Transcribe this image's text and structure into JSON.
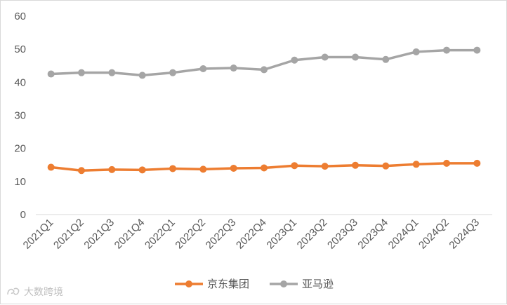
{
  "chart_data": {
    "type": "line",
    "categories": [
      "2021Q1",
      "2021Q2",
      "2021Q3",
      "2021Q4",
      "2022Q1",
      "2022Q2",
      "2022Q3",
      "2022Q4",
      "2023Q1",
      "2023Q2",
      "2023Q3",
      "2023Q4",
      "2024Q1",
      "2024Q2",
      "2024Q3"
    ],
    "series": [
      {
        "name": "京东集团",
        "color": "#ED7D31",
        "values": [
          14.3,
          13.3,
          13.6,
          13.5,
          13.9,
          13.7,
          14.0,
          14.1,
          14.8,
          14.6,
          14.9,
          14.7,
          15.2,
          15.5,
          15.5
        ]
      },
      {
        "name": "亚马逊",
        "color": "#A5A5A5",
        "values": [
          42.5,
          42.9,
          42.9,
          42.1,
          42.9,
          44.1,
          44.3,
          43.8,
          46.7,
          47.6,
          47.6,
          46.9,
          49.2,
          49.7,
          49.7
        ]
      }
    ],
    "yticks": [
      0,
      10,
      20,
      30,
      40,
      50,
      60
    ],
    "ylim": [
      0,
      60
    ],
    "grid": false,
    "legend_position": "bottom"
  },
  "watermark": {
    "text": "大数跨境",
    "icon": "brand-logo-icon"
  }
}
